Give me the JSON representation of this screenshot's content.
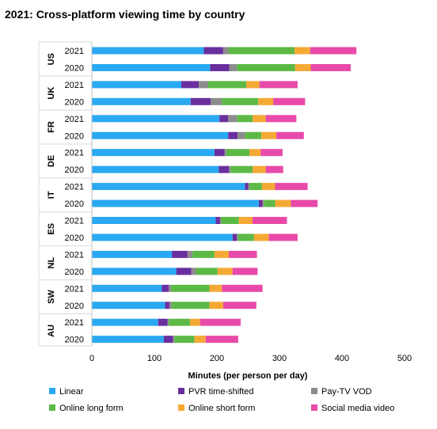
{
  "chart_data": {
    "type": "bar",
    "orientation": "horizontal",
    "stacked": true,
    "title": "2021: Cross-platform viewing time by country",
    "xlabel": "Minutes (per person per day)",
    "ylabel": "",
    "xlim": [
      0,
      500
    ],
    "xticks": [
      0,
      100,
      200,
      300,
      400,
      500
    ],
    "grid": false,
    "legend_position": "bottom",
    "groups": [
      {
        "label": "US",
        "rows": [
          {
            "year": "2021",
            "values": [
              179,
              31,
              9,
              105,
              25,
              74
            ]
          },
          {
            "year": "2020",
            "values": [
              189,
              31,
              12,
              93,
              25,
              64
            ]
          }
        ]
      },
      {
        "label": "UK",
        "rows": [
          {
            "year": "2021",
            "values": [
              143,
              28,
              15,
              61,
              21,
              61
            ]
          },
          {
            "year": "2020",
            "values": [
              158,
              32,
              18,
              58,
              24,
              51
            ]
          }
        ]
      },
      {
        "label": "FR",
        "rows": [
          {
            "year": "2021",
            "values": [
              204,
              14,
              14,
              25,
              21,
              49
            ]
          },
          {
            "year": "2020",
            "values": [
              218,
              15,
              12,
              26,
              24,
              44
            ]
          }
        ]
      },
      {
        "label": "DE",
        "rows": [
          {
            "year": "2021",
            "values": [
              196,
              16,
              3,
              37,
              18,
              35
            ]
          },
          {
            "year": "2020",
            "values": [
              203,
              16,
              3,
              35,
              21,
              28
            ]
          }
        ]
      },
      {
        "label": "IT",
        "rows": [
          {
            "year": "2021",
            "values": [
              245,
              5,
              2,
              20,
              21,
              52
            ]
          },
          {
            "year": "2020",
            "values": [
              267,
              6,
              2,
              18,
              25,
              43
            ]
          }
        ]
      },
      {
        "label": "ES",
        "rows": [
          {
            "year": "2021",
            "values": [
              198,
              7,
              2,
              28,
              22,
              55
            ]
          },
          {
            "year": "2020",
            "values": [
              225,
              7,
              2,
              25,
              24,
              46
            ]
          }
        ]
      },
      {
        "label": "NL",
        "rows": [
          {
            "year": "2021",
            "values": [
              128,
              25,
              8,
              35,
              23,
              45
            ]
          },
          {
            "year": "2020",
            "values": [
              135,
              24,
              8,
              34,
              24,
              40
            ]
          }
        ]
      },
      {
        "label": "SW",
        "rows": [
          {
            "year": "2021",
            "values": [
              112,
              11,
              4,
              61,
              20,
              65
            ]
          },
          {
            "year": "2020",
            "values": [
              117,
              7,
              4,
              60,
              22,
              53
            ]
          }
        ]
      },
      {
        "label": "AU",
        "rows": [
          {
            "year": "2021",
            "values": [
              106,
              15,
              2,
              34,
              16,
              65
            ]
          },
          {
            "year": "2020",
            "values": [
              115,
              15,
              2,
              32,
              18,
              52
            ]
          }
        ]
      }
    ],
    "series": [
      {
        "name": "Linear",
        "color": "#2aa9f2"
      },
      {
        "name": "PVR time-shifted",
        "color": "#6a2f9e"
      },
      {
        "name": "Pay-TV VOD",
        "color": "#8c8c8c"
      },
      {
        "name": "Online long form",
        "color": "#5cb946"
      },
      {
        "name": "Online short form",
        "color": "#f5a935"
      },
      {
        "name": "Social media video",
        "color": "#e84aa9"
      }
    ]
  }
}
